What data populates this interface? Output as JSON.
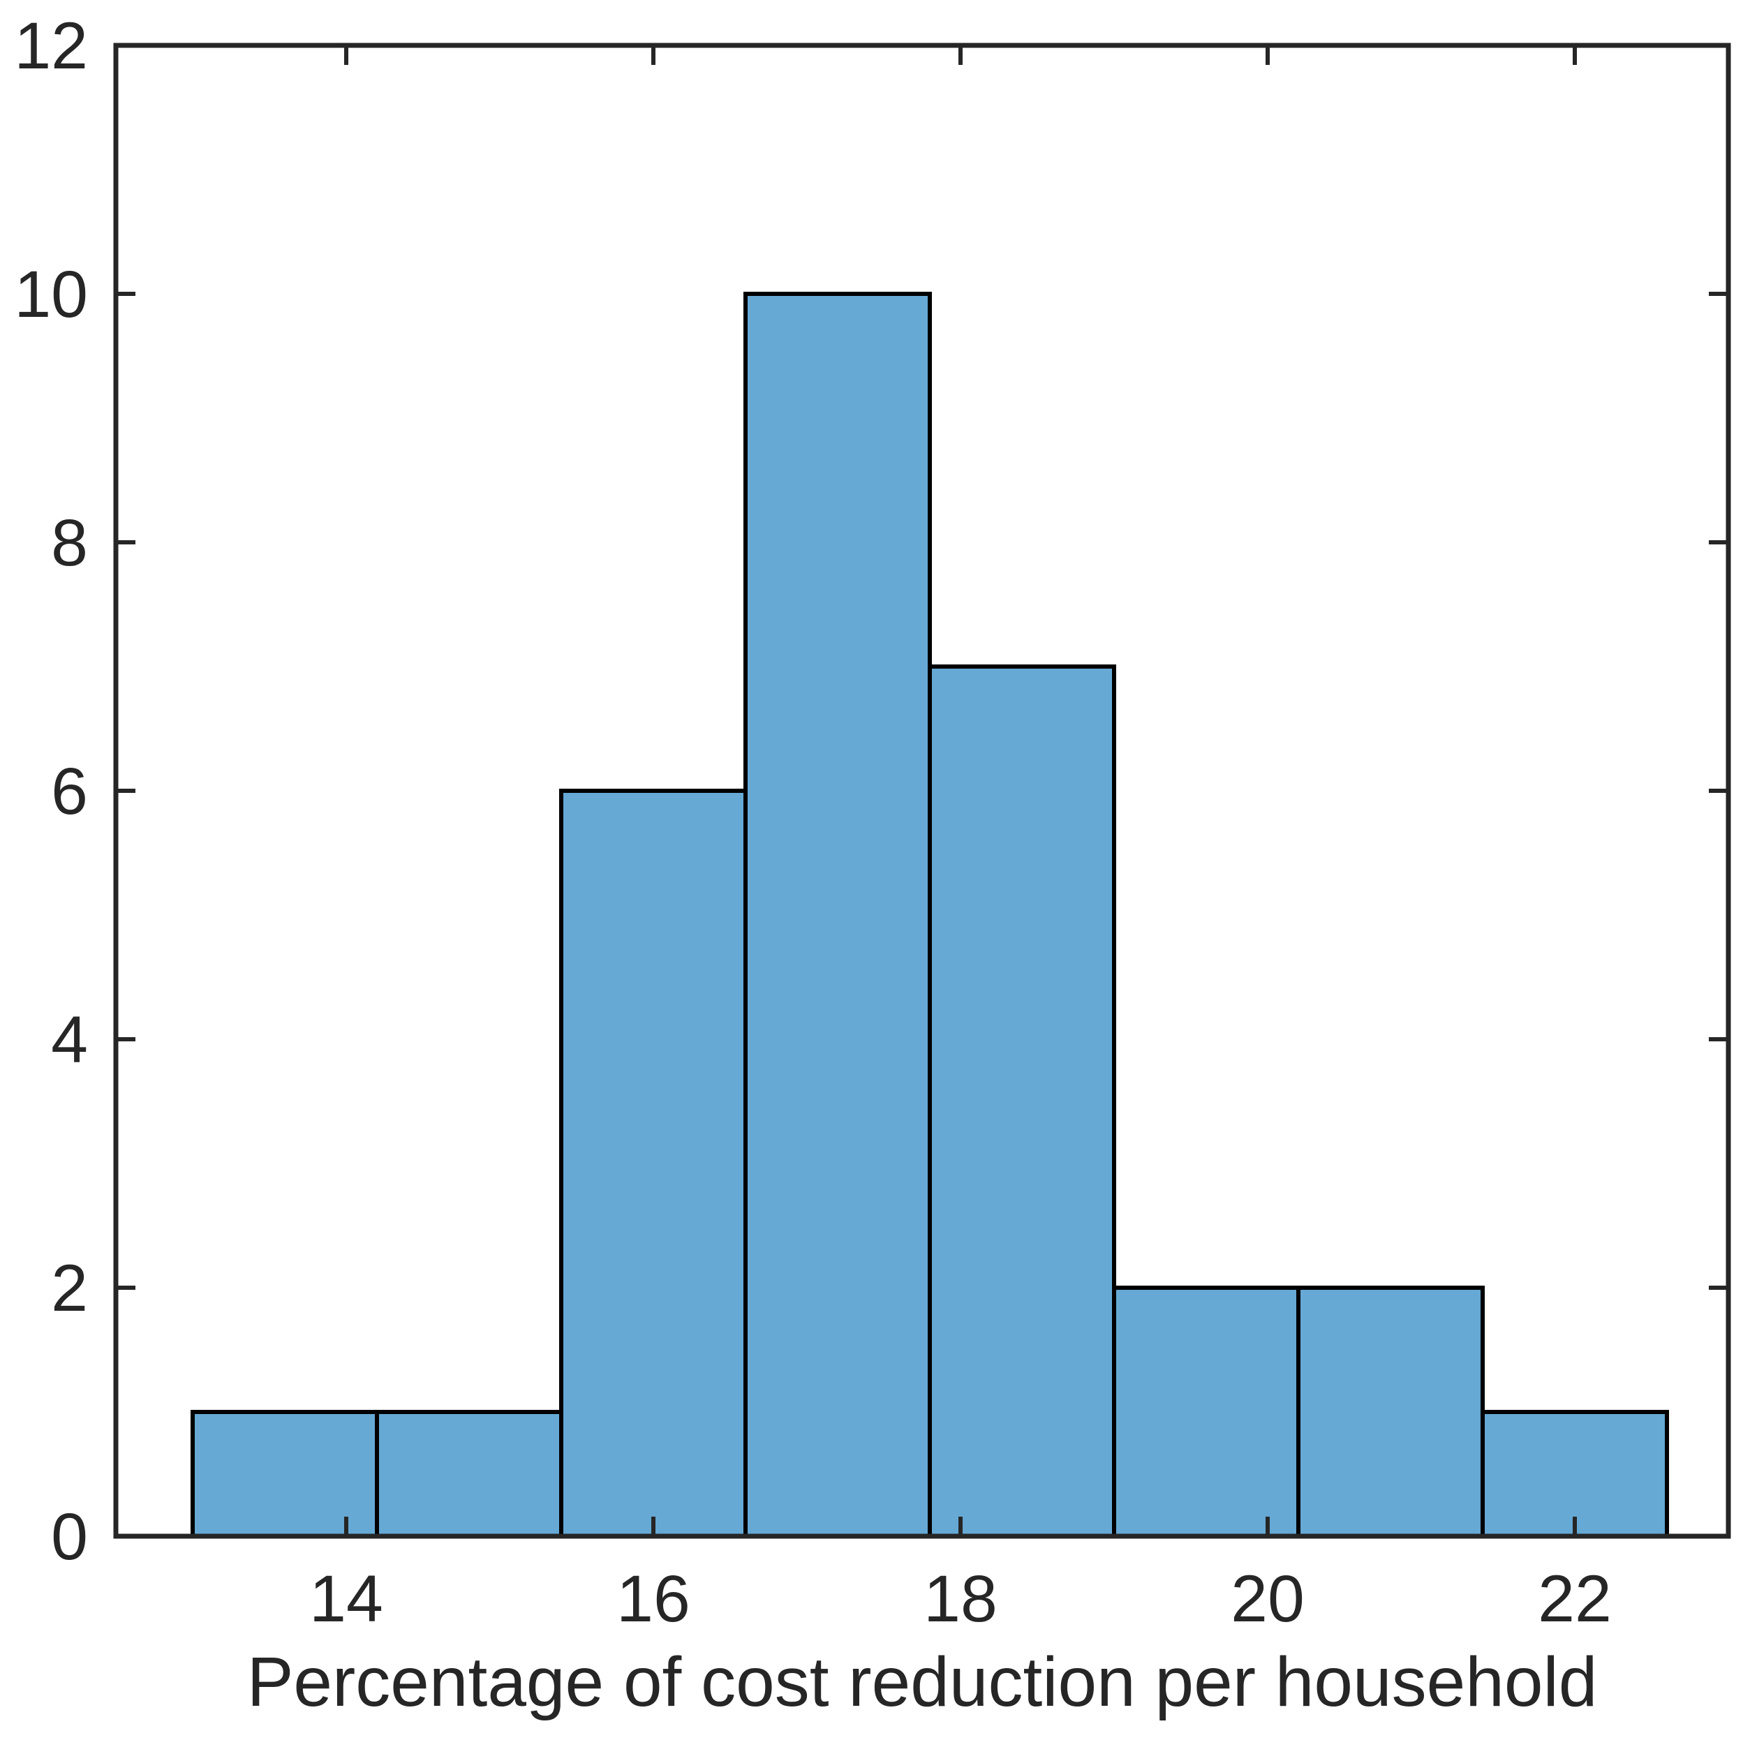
{
  "figure": {
    "background_color": "#ffffff",
    "axis_color": "#262626",
    "text_color": "#262626"
  },
  "chart_data": {
    "type": "bar",
    "subtype": "histogram",
    "title": "",
    "xlabel": "Percentage of cost reduction per household",
    "ylabel": "",
    "bin_edges": [
      13.0,
      14.2,
      15.4,
      16.6,
      17.8,
      19.0,
      20.2,
      21.4,
      22.6
    ],
    "counts": [
      1,
      1,
      6,
      10,
      7,
      2,
      2,
      1
    ],
    "bin_width": 1.2,
    "total_observations": 30,
    "xlim": [
      12.5,
      23
    ],
    "ylim": [
      0,
      12
    ],
    "x_ticks": [
      14,
      16,
      18,
      20,
      22
    ],
    "y_ticks": [
      0,
      2,
      4,
      6,
      8,
      10,
      12
    ],
    "grid": false,
    "legend": null,
    "box": true,
    "tick_direction": "in",
    "bar_fill_color": "#66A9D5",
    "bar_edge_color": "#000000"
  }
}
